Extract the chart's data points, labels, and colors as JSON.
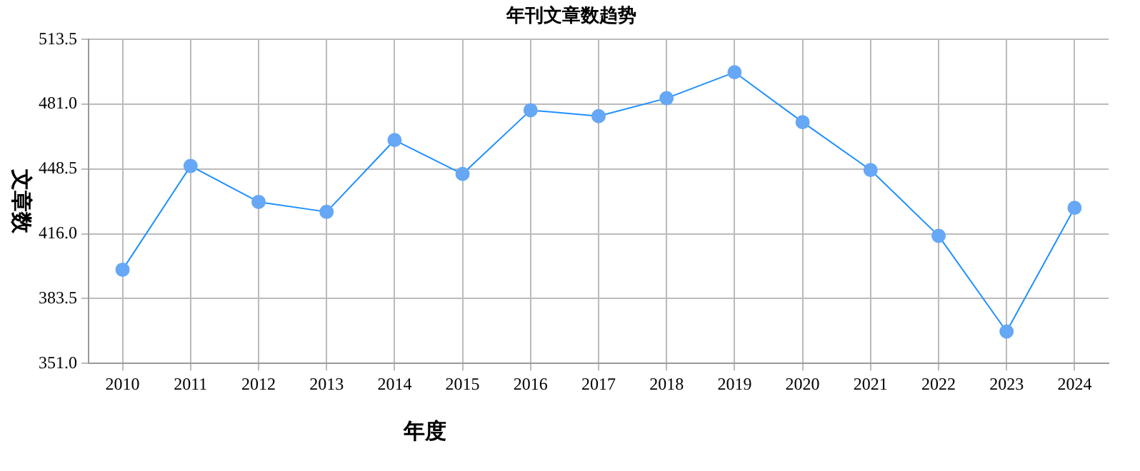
{
  "chart_data": {
    "type": "line",
    "title": "年刊文章数趋势",
    "xlabel": "年度",
    "ylabel": "文章数",
    "categories": [
      "2010",
      "2011",
      "2012",
      "2013",
      "2014",
      "2015",
      "2016",
      "2017",
      "2018",
      "2019",
      "2020",
      "2021",
      "2022",
      "2023",
      "2024"
    ],
    "series": [
      {
        "color": "#1e90ff",
        "values": [
          398,
          450,
          432,
          427,
          463,
          446,
          478,
          475,
          484,
          497,
          472,
          448,
          415,
          367,
          429
        ]
      }
    ],
    "ylim": [
      351,
      513.5
    ],
    "yticks": [
      {
        "value": 351,
        "label": "351.0"
      },
      383.5,
      {
        "value": 416,
        "label": "416.0"
      },
      448.5,
      {
        "value": 481,
        "label": "481.0"
      },
      513.5
    ],
    "grid": true,
    "legend": false,
    "marker": "circle",
    "line_style": "solid"
  }
}
